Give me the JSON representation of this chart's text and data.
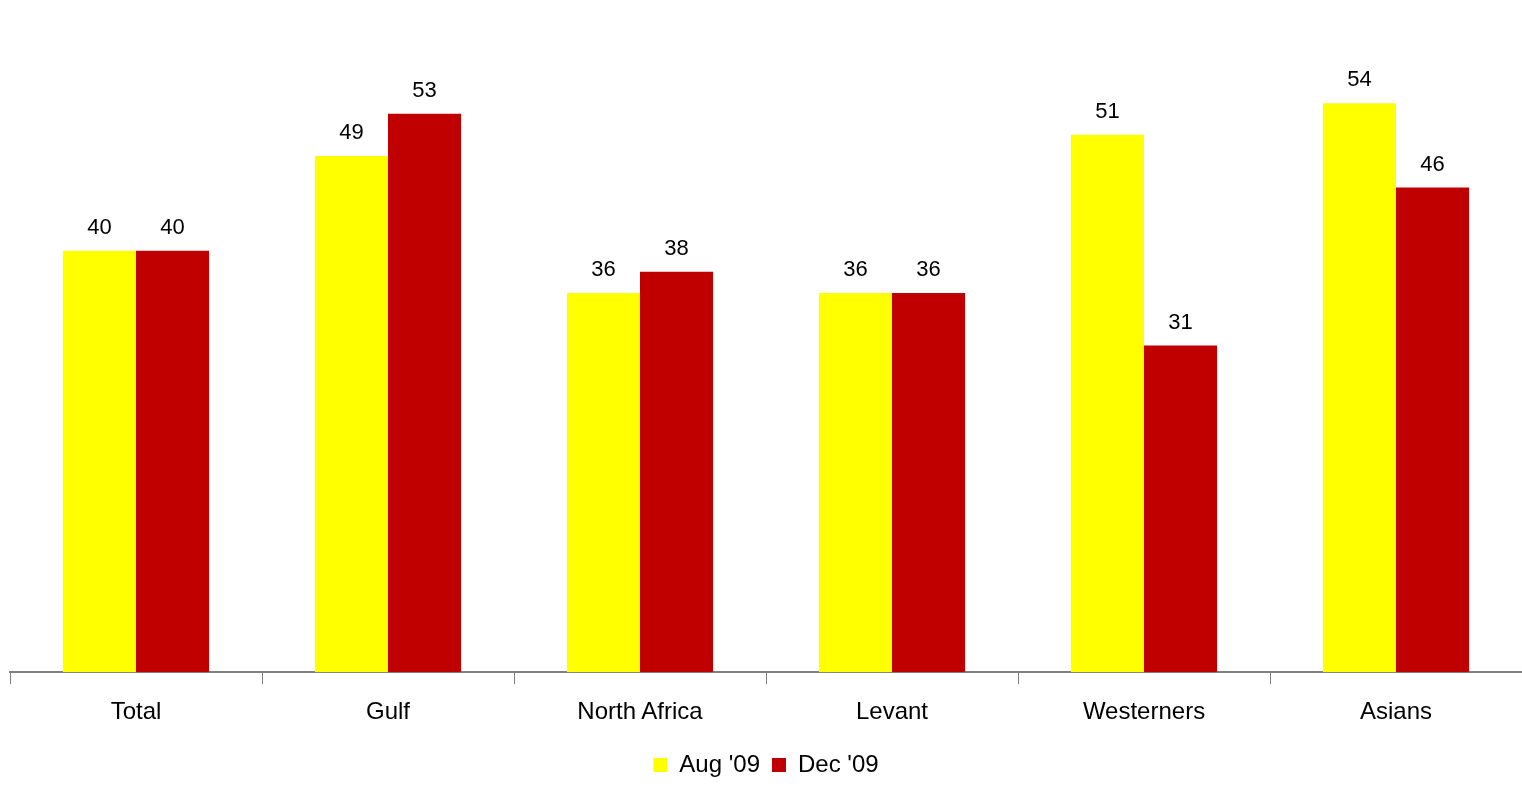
{
  "chart_data": {
    "type": "bar",
    "categories": [
      "Total",
      "Gulf",
      "North Africa",
      "Levant",
      "Westerners",
      "Asians"
    ],
    "series": [
      {
        "name": "Aug '09",
        "color": "#ffff00",
        "values": [
          40,
          49,
          36,
          36,
          51,
          54
        ]
      },
      {
        "name": "Dec '09",
        "color": "#c00000",
        "values": [
          40,
          53,
          38,
          36,
          31,
          46
        ]
      }
    ],
    "data_labels": true,
    "legend": "bottom",
    "grid": false,
    "tick_labels": "x"
  }
}
